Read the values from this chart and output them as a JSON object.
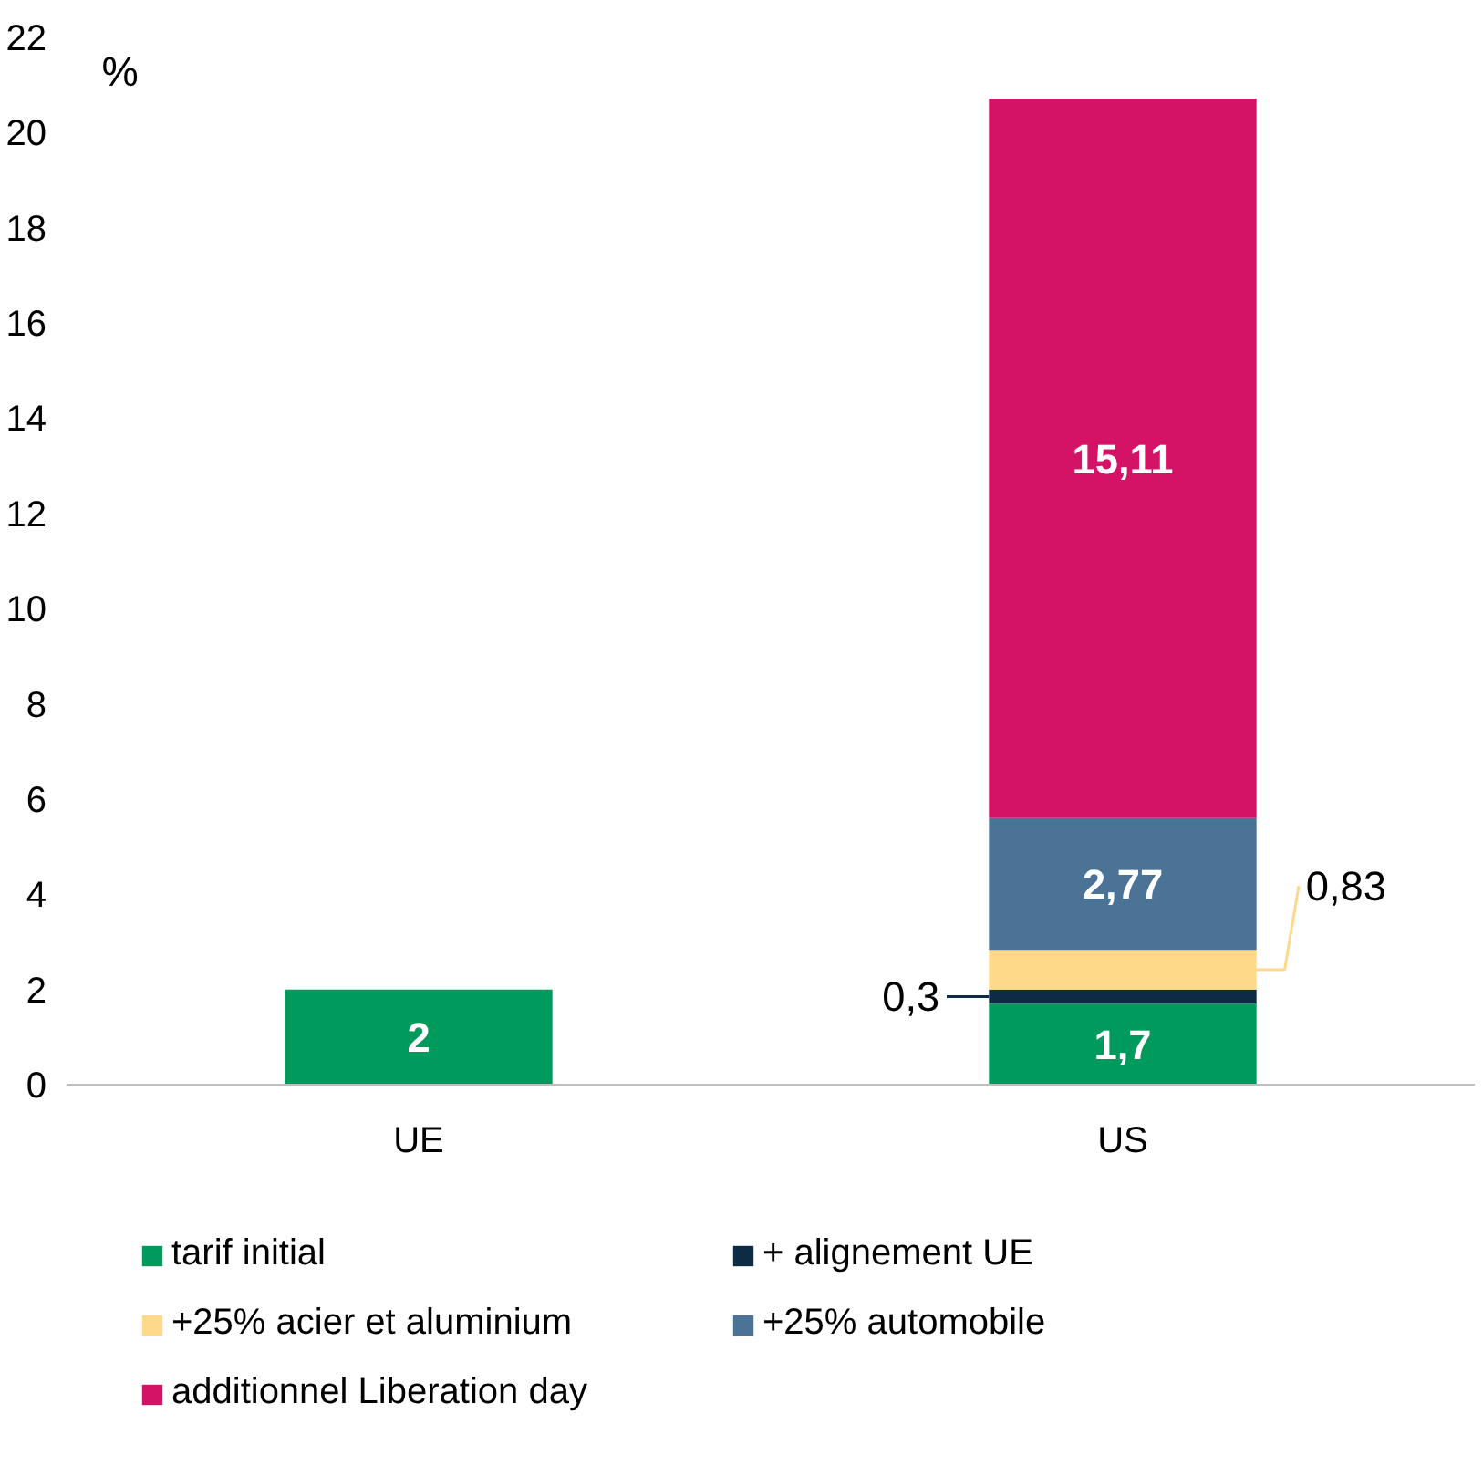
{
  "chart_data": {
    "type": "bar",
    "stacked": true,
    "ylabel": "%",
    "categories": [
      "UE",
      "US"
    ],
    "series": [
      {
        "name": "tarif initial",
        "color": "#009a5c",
        "values": [
          2,
          1.7
        ],
        "value_labels": [
          "2",
          "1,7"
        ]
      },
      {
        "name": "+ alignement UE",
        "color": "#0d2b45",
        "values": [
          null,
          0.3
        ],
        "value_labels": [
          null,
          "0,3"
        ]
      },
      {
        "name": "+25% acier et aluminium",
        "color": "#ffd98a",
        "values": [
          null,
          0.83
        ],
        "value_labels": [
          null,
          "0,83"
        ]
      },
      {
        "name": "+25% automobile",
        "color": "#4a7396",
        "values": [
          null,
          2.77
        ],
        "value_labels": [
          null,
          "2,77"
        ]
      },
      {
        "name": "additionnel Liberation day",
        "color": "#d41367",
        "values": [
          null,
          15.11
        ],
        "value_labels": [
          null,
          "15,11"
        ]
      }
    ],
    "ylim": [
      0,
      22
    ],
    "yticks": [
      0,
      2,
      4,
      6,
      8,
      10,
      12,
      14,
      16,
      18,
      20,
      22
    ],
    "grid": false,
    "legend": "bottom"
  }
}
